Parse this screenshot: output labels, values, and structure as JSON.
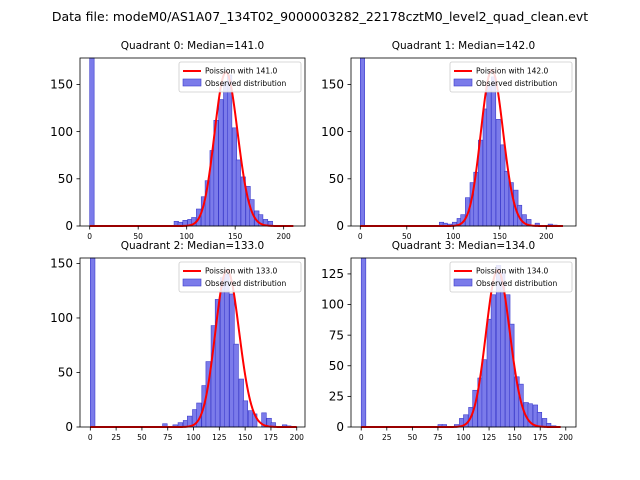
{
  "suptitle": "Data file: modeM0/AS1A07_134T02_9000003282_22178cztM0_level2_quad_clean.evt",
  "legend": {
    "poisson_prefix": "Poission with ",
    "observed_label": "Observed distribution"
  },
  "colors": {
    "hist_fill": "#7b7bea",
    "hist_edge": "#3c3ccc",
    "poisson_line": "#ff0000",
    "text": "#000000"
  },
  "chart_data": [
    {
      "type": "bar",
      "title": "Quadrant 0: Median=141.0",
      "median": 141.0,
      "poisson_label": "Poission with 141.0",
      "bin_width": 4.6,
      "hist_start": 0,
      "xlim": [
        -10,
        222
      ],
      "ylim": [
        0,
        178
      ],
      "xticks": [
        0,
        50,
        100,
        150,
        200
      ],
      "yticks": [
        0,
        50,
        100,
        150
      ],
      "legend_position": "upper-right",
      "hist_x": [
        0,
        87,
        91,
        96,
        101,
        105,
        110,
        115,
        119,
        124,
        128,
        133,
        138,
        142,
        147,
        151,
        156,
        161,
        165,
        170,
        174,
        179,
        184
      ],
      "hist_counts": [
        178,
        5,
        4,
        6,
        7,
        9,
        18,
        31,
        48,
        80,
        112,
        134,
        153,
        160,
        104,
        70,
        52,
        42,
        28,
        16,
        12,
        7,
        5
      ],
      "poisson": {
        "mean": 141.0,
        "peak": 163,
        "xmax": 210
      }
    },
    {
      "type": "bar",
      "title": "Quadrant 1: Median=142.0",
      "median": 142.0,
      "poisson_label": "Poission with 142.0",
      "bin_width": 4.7,
      "hist_start": 0,
      "xlim": [
        -10,
        232
      ],
      "ylim": [
        0,
        178
      ],
      "xticks": [
        0,
        50,
        100,
        150,
        200
      ],
      "yticks": [
        0,
        50,
        100,
        150
      ],
      "legend_position": "upper-right",
      "hist_x": [
        0,
        85,
        89,
        94,
        99,
        104,
        108,
        113,
        118,
        122,
        127,
        132,
        136,
        141,
        146,
        151,
        155,
        160,
        165,
        169,
        174,
        179,
        188,
        202,
        207
      ],
      "hist_counts": [
        178,
        4,
        3,
        2,
        4,
        8,
        12,
        30,
        46,
        57,
        91,
        124,
        148,
        158,
        113,
        86,
        58,
        46,
        38,
        22,
        12,
        7,
        3,
        2,
        1
      ],
      "poisson": {
        "mean": 142.0,
        "peak": 165,
        "xmax": 218
      }
    },
    {
      "type": "bar",
      "title": "Quadrant 2: Median=133.0",
      "median": 133.0,
      "poisson_label": "Poission with 133.0",
      "bin_width": 4.5,
      "hist_start": 0,
      "xlim": [
        -10,
        208
      ],
      "ylim": [
        0,
        155
      ],
      "xticks": [
        0,
        25,
        50,
        75,
        100,
        125,
        150,
        175,
        200
      ],
      "yticks": [
        0,
        50,
        100,
        150
      ],
      "legend_position": "upper-right",
      "hist_x": [
        0,
        70,
        80,
        85,
        90,
        94,
        99,
        103,
        108,
        112,
        117,
        121,
        126,
        130,
        135,
        139,
        144,
        148,
        153,
        157,
        166,
        171,
        175,
        186,
        190
      ],
      "hist_counts": [
        155,
        3,
        2,
        4,
        6,
        10,
        16,
        22,
        38,
        60,
        93,
        117,
        137,
        140,
        122,
        76,
        44,
        24,
        15,
        12,
        13,
        8,
        4,
        2,
        1
      ],
      "poisson": {
        "mean": 133.0,
        "peak": 144,
        "xmax": 200
      }
    },
    {
      "type": "bar",
      "title": "Quadrant 3: Median=134.0",
      "median": 134.0,
      "poisson_label": "Poission with 134.0",
      "bin_width": 4.5,
      "hist_start": 0,
      "xlim": [
        -10,
        210
      ],
      "ylim": [
        0,
        138
      ],
      "xticks": [
        0,
        25,
        50,
        75,
        100,
        125,
        150,
        175,
        200
      ],
      "yticks": [
        0,
        25,
        50,
        75,
        100,
        125
      ],
      "legend_position": "upper-right",
      "hist_x": [
        0,
        75,
        79,
        91,
        96,
        100,
        105,
        109,
        114,
        118,
        123,
        127,
        132,
        136,
        141,
        145,
        150,
        154,
        159,
        163,
        168,
        172,
        177,
        181,
        186
      ],
      "hist_counts": [
        138,
        2,
        2,
        2,
        7,
        10,
        16,
        30,
        40,
        55,
        88,
        108,
        132,
        126,
        108,
        84,
        41,
        35,
        20,
        19,
        18,
        12,
        7,
        3,
        1
      ],
      "poisson": {
        "mean": 134.0,
        "peak": 128,
        "xmax": 195
      }
    }
  ]
}
